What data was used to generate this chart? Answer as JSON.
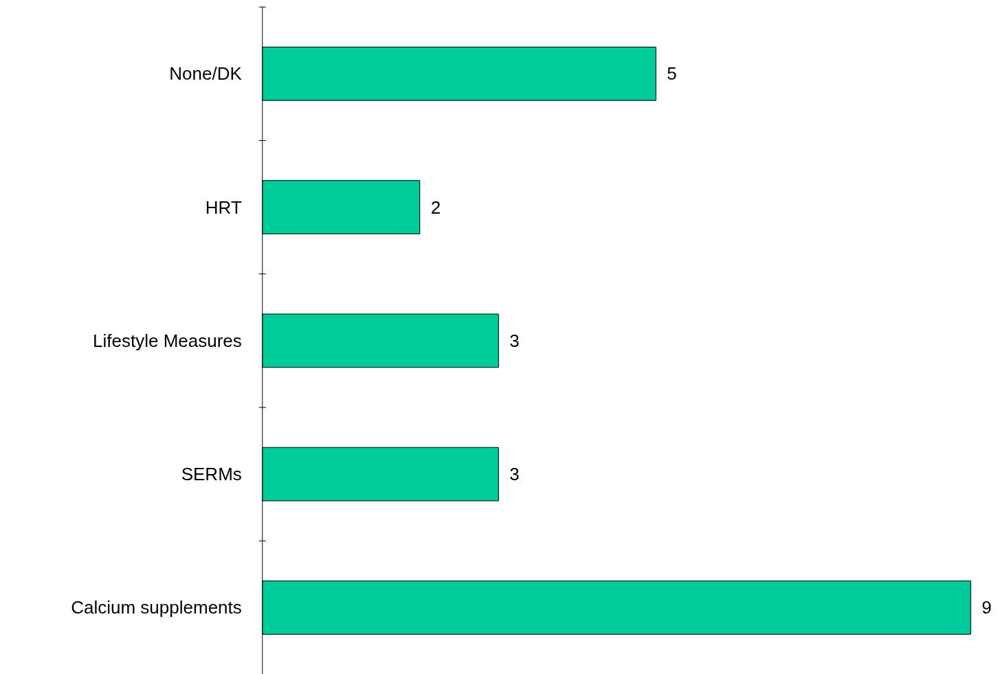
{
  "chart_data": {
    "type": "bar",
    "orientation": "horizontal",
    "categories": [
      "None/DK",
      "HRT",
      "Lifestyle Measures",
      "SERMs",
      "Calcium supplements"
    ],
    "values": [
      5,
      2,
      3,
      3,
      9
    ],
    "color": "#00cc99",
    "data_labels": true,
    "grid": false
  }
}
